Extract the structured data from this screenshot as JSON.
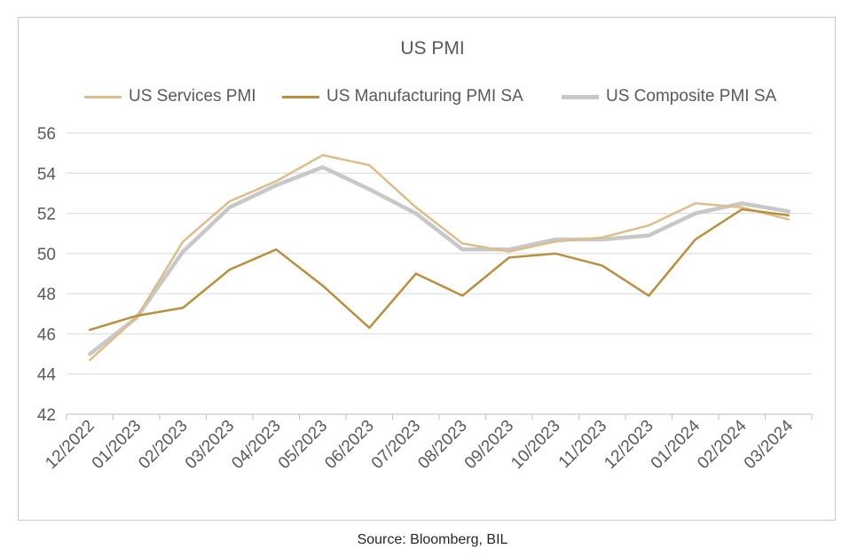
{
  "chart_data": {
    "type": "line",
    "title": "US PMI",
    "categories": [
      "12/2022",
      "01/2023",
      "02/2023",
      "03/2023",
      "04/2023",
      "05/2023",
      "06/2023",
      "07/2023",
      "08/2023",
      "09/2023",
      "10/2023",
      "11/2023",
      "12/2023",
      "01/2024",
      "02/2024",
      "03/2024"
    ],
    "series": [
      {
        "name": "US Services PMI",
        "color": "#DDBD8A",
        "values": [
          44.7,
          46.8,
          50.6,
          52.6,
          53.6,
          54.9,
          54.4,
          52.3,
          50.5,
          50.1,
          50.6,
          50.8,
          51.4,
          52.5,
          52.3,
          51.7
        ]
      },
      {
        "name": "US Manufacturing PMI SA",
        "color": "#B8903F",
        "values": [
          46.2,
          46.9,
          47.3,
          49.2,
          50.2,
          48.4,
          46.3,
          49.0,
          47.9,
          49.8,
          50.0,
          49.4,
          47.9,
          50.7,
          52.2,
          51.9
        ]
      },
      {
        "name": "US Composite PMI SA",
        "color": "#C8C8C8",
        "values": [
          45.0,
          46.8,
          50.1,
          52.3,
          53.4,
          54.3,
          53.2,
          52.0,
          50.2,
          50.2,
          50.7,
          50.7,
          50.9,
          52.0,
          52.5,
          52.1
        ]
      }
    ],
    "ylim": [
      42,
      56
    ],
    "yticks": [
      42,
      44,
      46,
      48,
      50,
      52,
      54,
      56
    ],
    "xlabel": "",
    "ylabel": "",
    "grid": true,
    "legend_position": "top"
  },
  "source_note": "Source: Bloomberg, BIL"
}
